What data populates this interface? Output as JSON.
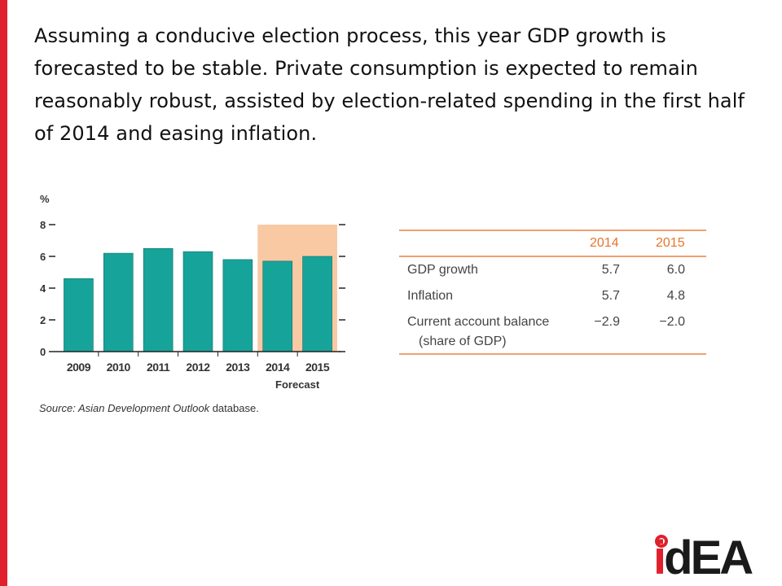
{
  "headline": "Assuming a conducive election process, this year GDP growth is forecasted to be stable. Private consumption is expected to remain reasonably robust, assisted by election-related spending in the first half of 2014 and easing inflation.",
  "chart_data": {
    "type": "bar",
    "ylabel": "%",
    "categories": [
      "2009",
      "2010",
      "2011",
      "2012",
      "2013",
      "2014",
      "2015"
    ],
    "values": [
      4.6,
      6.2,
      6.5,
      6.3,
      5.8,
      5.7,
      6.0
    ],
    "ylim": [
      0,
      8
    ],
    "yticks": [
      "0",
      "2",
      "4",
      "6",
      "8"
    ],
    "forecast_label": "Forecast",
    "forecast_categories": [
      "2014",
      "2015"
    ],
    "bar_color": "#16a39a",
    "forecast_shade_color": "#f9c9a4",
    "grid": false,
    "source_prefix": "Source: ",
    "source_italic": "Asian Development Outlook",
    "source_suffix": " database."
  },
  "table": {
    "columns": [
      "2014",
      "2015"
    ],
    "rows": [
      {
        "label": [
          "GDP growth"
        ],
        "v2014": "5.7",
        "v2015": "6.0"
      },
      {
        "label": [
          "Inflation"
        ],
        "v2014": "5.7",
        "v2015": "4.8"
      },
      {
        "label": [
          "Current account balance",
          "(share of GDP)"
        ],
        "v2014": "−2.9",
        "v2015": "−2.0"
      }
    ],
    "rule_color": "#f0a070",
    "header_color": "#e8742a"
  },
  "logo": {
    "i": "i",
    "d": "d",
    "EA": "EA"
  },
  "colors": {
    "accent_red": "#e0202c"
  }
}
